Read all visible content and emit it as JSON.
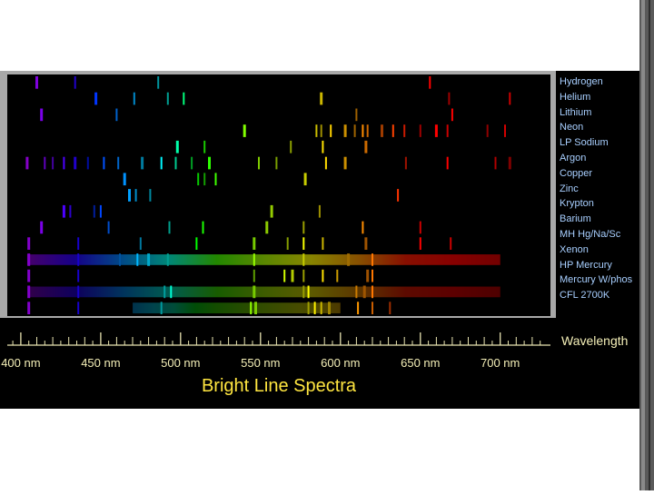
{
  "title": "Bright Line Spectra",
  "axis_label": "Wavelength",
  "tick_labels": [
    "400 nm",
    "450 nm",
    "500 nm",
    "550 nm",
    "600 nm",
    "650 nm",
    "700 nm"
  ],
  "tick_values_nm": [
    400,
    450,
    500,
    550,
    600,
    650,
    700
  ],
  "wavelength_range_nm": [
    387,
    728
  ],
  "elements": [
    {
      "label": "Hydrogen",
      "lines": [
        410,
        434,
        486,
        656
      ]
    },
    {
      "label": "Helium",
      "lines": [
        447,
        471,
        492,
        502,
        588,
        668,
        706
      ]
    },
    {
      "label": "Lithium",
      "lines": [
        413,
        460,
        610,
        670
      ]
    },
    {
      "label": "Neon",
      "lines": [
        540,
        585,
        588,
        594,
        603,
        609,
        614,
        617,
        626,
        633,
        640,
        650,
        660,
        667,
        692,
        703
      ]
    },
    {
      "label": "LP Sodium",
      "lines": [
        498,
        515,
        569,
        589,
        616
      ]
    },
    {
      "label": "Argon",
      "lines": [
        404,
        415,
        420,
        427,
        434,
        442,
        452,
        461,
        476,
        488,
        497,
        507,
        518,
        549,
        560,
        591,
        603,
        641,
        667,
        697,
        706
      ]
    },
    {
      "label": "Copper",
      "lines": [
        465,
        511,
        515,
        522,
        578
      ]
    },
    {
      "label": "Zinc",
      "lines": [
        468,
        472,
        481,
        636
      ]
    },
    {
      "label": "Krypton",
      "lines": [
        427,
        431,
        446,
        450,
        557,
        587
      ]
    },
    {
      "label": "Barium",
      "lines": [
        413,
        455,
        493,
        514,
        554,
        577,
        614,
        650
      ]
    },
    {
      "label": "MH     Hg/Na/Sc",
      "lines": [
        405,
        436,
        475,
        510,
        546,
        567,
        577,
        589,
        616,
        650,
        669
      ]
    },
    {
      "label": "Xenon",
      "lines": [
        405,
        436,
        462,
        473,
        480,
        492,
        546,
        577,
        605,
        620
      ]
    },
    {
      "label": "HP Mercury",
      "lines": [
        405,
        436,
        546,
        565,
        570,
        577,
        589,
        598,
        617,
        620
      ]
    },
    {
      "label": "Mercury W/phos",
      "lines": [
        405,
        436,
        490,
        494,
        546,
        577,
        580,
        610,
        615,
        620
      ]
    },
    {
      "label": "CFL 2700K",
      "lines": [
        405,
        436,
        488,
        544,
        547,
        580,
        584,
        588,
        593,
        611,
        620,
        631
      ]
    }
  ]
}
